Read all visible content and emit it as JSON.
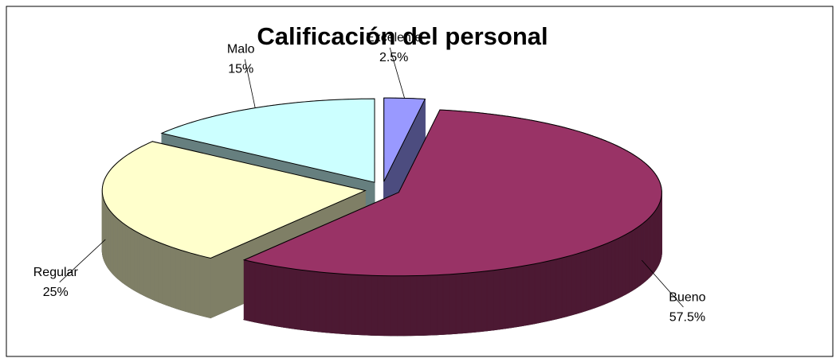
{
  "chart_data": {
    "type": "pie",
    "title": "Calificación del personal",
    "categories": [
      "Excelente",
      "Bueno",
      "Regular",
      "Malo"
    ],
    "values": [
      2.5,
      57.5,
      25,
      15
    ],
    "value_labels": [
      "2.5%",
      "57.5%",
      "25%",
      "15%"
    ],
    "colors": [
      "#9999ff",
      "#993366",
      "#ffffcc",
      "#ccffff"
    ]
  }
}
